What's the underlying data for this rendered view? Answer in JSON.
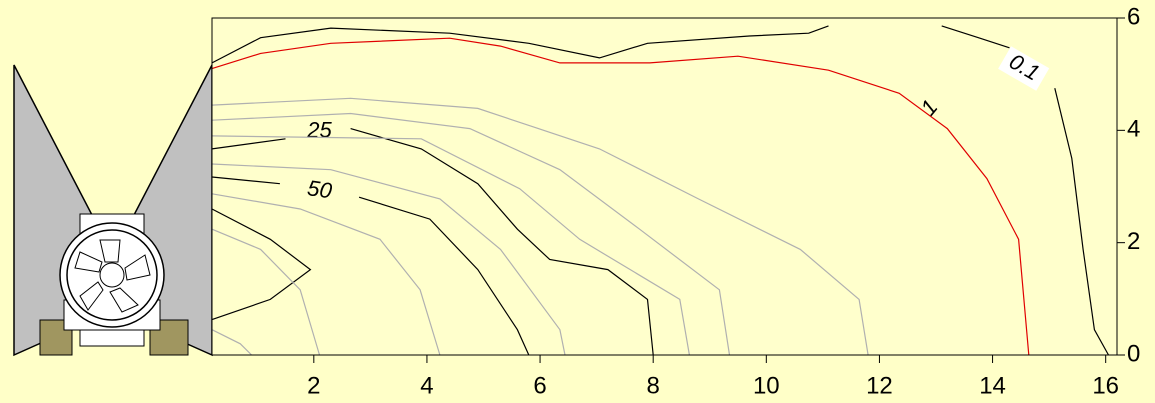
{
  "chart_data": {
    "type": "contour",
    "xlim": [
      0.2,
      16.2
    ],
    "xticks": [
      2,
      4,
      6,
      8,
      10,
      12,
      14,
      16
    ],
    "ylim": [
      0,
      6
    ],
    "yticks": [
      0,
      2,
      4,
      6
    ],
    "series": [
      {
        "color": "#e00000",
        "level": 1,
        "x": [
          0.2,
          1.06,
          2.3,
          4.4,
          5.3,
          6.35,
          7.94,
          9.5,
          11.1,
          12.35,
          13.2,
          13.9,
          14.46,
          14.64
        ],
        "y": [
          5.1,
          5.37,
          5.55,
          5.64,
          5.5,
          5.2,
          5.2,
          5.32,
          5.07,
          4.66,
          4.03,
          3.14,
          2.06,
          0
        ]
      },
      {
        "color": "#000000",
        "level": 0.1,
        "x": [
          0.2,
          1.06,
          2.3,
          4.4,
          5.8,
          7.05,
          7.9,
          9.7,
          10.75,
          11.1,
          null,
          13.1,
          13.75,
          14.3,
          null,
          15.1,
          15.4,
          15.6,
          15.8,
          16.05
        ],
        "y": [
          5.2,
          5.65,
          5.82,
          5.73,
          5.55,
          5.29,
          5.55,
          5.68,
          5.73,
          5.86,
          null,
          5.86,
          5.65,
          5.47,
          null,
          4.75,
          3.5,
          1.88,
          0.45,
          0
        ]
      },
      {
        "color": "#000000",
        "level": 25,
        "x": [
          0.2,
          1.5,
          null,
          2.65,
          3.9,
          4.9,
          5.6,
          6.17,
          7.2,
          7.9,
          8.0
        ],
        "y": [
          3.67,
          3.85,
          null,
          4.03,
          3.67,
          3.05,
          2.24,
          1.7,
          1.52,
          0.99,
          0
        ]
      },
      {
        "color": "#000000",
        "level": 50,
        "x": [
          0.2,
          1.4,
          null,
          2.8,
          4.05,
          4.9,
          5.6,
          5.8
        ],
        "y": [
          3.17,
          3.05,
          null,
          2.81,
          2.42,
          1.52,
          0.45,
          0
        ]
      },
      {
        "color": "#000000",
        "x": [
          0.2,
          1.23,
          1.94,
          1.23,
          0.2
        ],
        "y": [
          2.6,
          2.06,
          1.52,
          0.99,
          0.63
        ]
      },
      {
        "color": "#b0b0b0",
        "x": [
          0.2,
          2.65,
          4.9,
          7.05,
          8.8,
          10.6,
          11.64,
          11.8
        ],
        "y": [
          4.45,
          4.57,
          4.39,
          3.67,
          2.78,
          1.88,
          0.99,
          0
        ]
      },
      {
        "color": "#b0b0b0",
        "x": [
          0.2,
          2.65,
          4.76,
          6.35,
          7.76,
          9.17,
          9.35
        ],
        "y": [
          4.18,
          4.3,
          4.03,
          3.3,
          2.24,
          1.16,
          0
        ]
      },
      {
        "color": "#b0b0b0",
        "x": [
          0.2,
          3.9,
          5.64,
          6.7,
          8.47,
          8.64
        ],
        "y": [
          3.9,
          3.85,
          2.96,
          2.06,
          0.99,
          0
        ]
      },
      {
        "color": "#b0b0b0",
        "x": [
          0.2,
          2.3,
          4.23,
          5.3,
          6.35,
          6.44
        ],
        "y": [
          3.4,
          3.3,
          2.78,
          1.88,
          0.45,
          0
        ]
      },
      {
        "color": "#b0b0b0",
        "x": [
          0.2,
          1.76,
          3.17,
          3.88,
          4.23
        ],
        "y": [
          2.87,
          2.6,
          2.06,
          1.16,
          0
        ]
      },
      {
        "color": "#b0b0b0",
        "x": [
          0.2,
          1.06,
          1.76,
          2.1
        ],
        "y": [
          2.24,
          1.88,
          1.16,
          0
        ]
      },
      {
        "color": "#b0b0b0",
        "x": [
          0.2,
          0.7,
          0.9
        ],
        "y": [
          0.45,
          0.2,
          0
        ]
      }
    ]
  }
}
